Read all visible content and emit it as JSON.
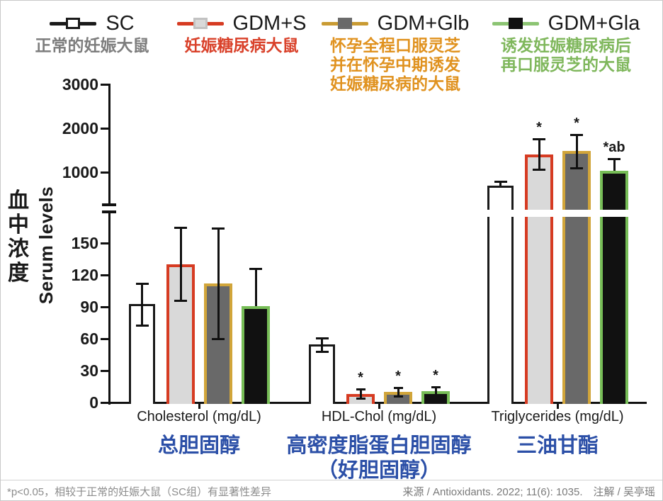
{
  "colors": {
    "black": "#1a1a1a",
    "red_border": "#d63b22",
    "gold_border": "#d1a53a",
    "green_border": "#77bd57",
    "light_gray_fill": "#d9d9d9",
    "dark_gray_fill": "#696969",
    "black_fill": "#111111",
    "red_text": "#d9412a",
    "orange_text": "#e0921f",
    "green_text": "#7fb75c",
    "gray_text": "#7d7d7d",
    "blue_label": "#2b4fa7"
  },
  "legend": {
    "groups": [
      {
        "code": "SC",
        "desc_lines": [
          "正常的妊娠大鼠"
        ],
        "desc_color": "#7d7d7d",
        "line_color": "#1a1a1a",
        "square": {
          "fill": "#ffffff",
          "border": "#1a1a1a"
        },
        "bar": {
          "fill": "#ffffff",
          "border": "#1a1a1a"
        }
      },
      {
        "code": "GDM+S",
        "desc_lines": [
          "妊娠糖尿病大鼠"
        ],
        "desc_color": "#d9412a",
        "line_color": "#d63b22",
        "square": {
          "fill": "#d9d9d9",
          "border": "#c2c2c2"
        },
        "bar": {
          "fill": "#d9d9d9",
          "border": "#d63b22"
        }
      },
      {
        "code": "GDM+Glb",
        "desc_lines": [
          "怀孕全程口服灵芝",
          "并在怀孕中期诱发",
          "妊娠糖尿病的大鼠"
        ],
        "desc_color": "#e0921f",
        "line_color": "#c99b33",
        "square": {
          "fill": "#696969",
          "border": "#6b6b6b"
        },
        "bar": {
          "fill": "#696969",
          "border": "#d1a53a"
        }
      },
      {
        "code": "GDM+Gla",
        "desc_lines": [
          "诱发妊娠糖尿病后",
          "再口服灵芝的大鼠"
        ],
        "desc_color": "#7fb75c",
        "line_color": "#8cc473",
        "square": {
          "fill": "#111111",
          "border": "#111111"
        },
        "bar": {
          "fill": "#111111",
          "border": "#77bd57"
        }
      }
    ]
  },
  "axis": {
    "ylabel_en": "Serum levels",
    "ylabel_zh": "血中浓度",
    "upper_ticks": [
      "3000",
      "2000",
      "1000"
    ],
    "lower_ticks": [
      "150",
      "120",
      "90",
      "60",
      "30",
      "0"
    ]
  },
  "chart_data": {
    "type": "bar",
    "title": "",
    "ylabel": "Serum levels",
    "units": "mg/dL",
    "axis_break": {
      "lower_range": [
        0,
        150
      ],
      "upper_range": [
        1000,
        3000
      ]
    },
    "legend_position": "top",
    "grid": false,
    "categories": [
      {
        "en": "Cholesterol (mg/dL)",
        "zh_lines": [
          "总胆固醇"
        ]
      },
      {
        "en": "HDL-Chol (mg/dL)",
        "zh_lines": [
          "高密度脂蛋白胆固醇",
          "（好胆固醇）"
        ]
      },
      {
        "en": "Triglycerides (mg/dL)",
        "zh_lines": [
          "三油甘酯"
        ]
      }
    ],
    "series": [
      {
        "name": "SC",
        "values": [
          93,
          55,
          700
        ],
        "err_low": [
          73,
          48,
          700
        ],
        "err_high": [
          112,
          61,
          790
        ],
        "sig": [
          "",
          "",
          ""
        ]
      },
      {
        "name": "GDM+S",
        "values": [
          130,
          8,
          1400
        ],
        "err_low": [
          96,
          4,
          1070
        ],
        "err_high": [
          165,
          13,
          1760
        ],
        "sig": [
          "",
          "*",
          "*"
        ]
      },
      {
        "name": "GDM+Glb",
        "values": [
          112,
          10,
          1480
        ],
        "err_low": [
          60,
          6,
          1100
        ],
        "err_high": [
          164,
          14,
          1860
        ],
        "sig": [
          "",
          "*",
          "*"
        ]
      },
      {
        "name": "GDM+Gla",
        "values": [
          91,
          11,
          1030
        ],
        "err_low": [
          91,
          7,
          1030
        ],
        "err_high": [
          126,
          15,
          1300
        ],
        "sig": [
          "",
          "*",
          "*ab"
        ]
      }
    ]
  },
  "footer": {
    "note": "*p<0.05，相较于正常的妊娠大鼠（SC组）有显著性差异",
    "source": "来源 / Antioxidants. 2022; 11(6): 1035.　注解 / 吴亭瑶"
  }
}
